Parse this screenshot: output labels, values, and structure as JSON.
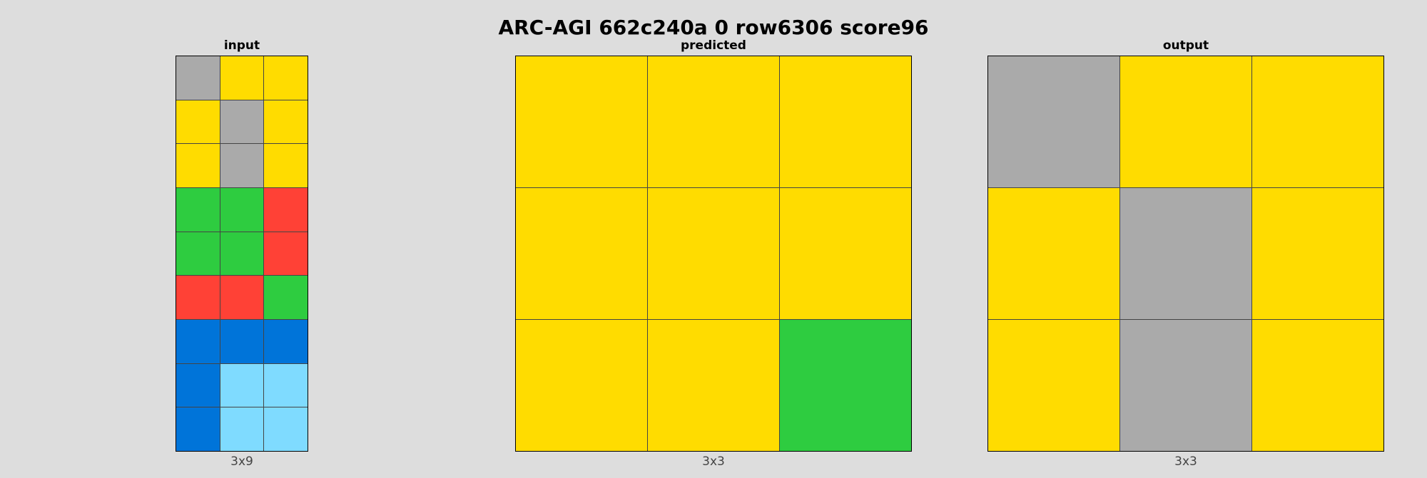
{
  "title": "ARC-AGI 662c240a 0 row6306 score96",
  "palette": {
    "0": "#000000",
    "1": "#0074d9",
    "2": "#ff4136",
    "3": "#2ecc40",
    "4": "#ffdc00",
    "5": "#aaaaaa",
    "6": "#f012be",
    "7": "#ff851b",
    "8": "#7fdbff",
    "9": "#870c25"
  },
  "panels": [
    {
      "id": "input",
      "title": "input",
      "size_label": "3x9",
      "grid": [
        [
          5,
          4,
          4
        ],
        [
          4,
          5,
          4
        ],
        [
          4,
          5,
          4
        ],
        [
          3,
          3,
          2
        ],
        [
          3,
          3,
          2
        ],
        [
          2,
          2,
          3
        ],
        [
          1,
          1,
          1
        ],
        [
          1,
          8,
          8
        ],
        [
          1,
          8,
          8
        ]
      ]
    },
    {
      "id": "predicted",
      "title": "predicted",
      "size_label": "3x3",
      "grid": [
        [
          4,
          4,
          4
        ],
        [
          4,
          4,
          4
        ],
        [
          4,
          4,
          3
        ]
      ]
    },
    {
      "id": "output",
      "title": "output",
      "size_label": "3x3",
      "grid": [
        [
          5,
          4,
          4
        ],
        [
          4,
          5,
          4
        ],
        [
          4,
          5,
          4
        ]
      ]
    }
  ]
}
